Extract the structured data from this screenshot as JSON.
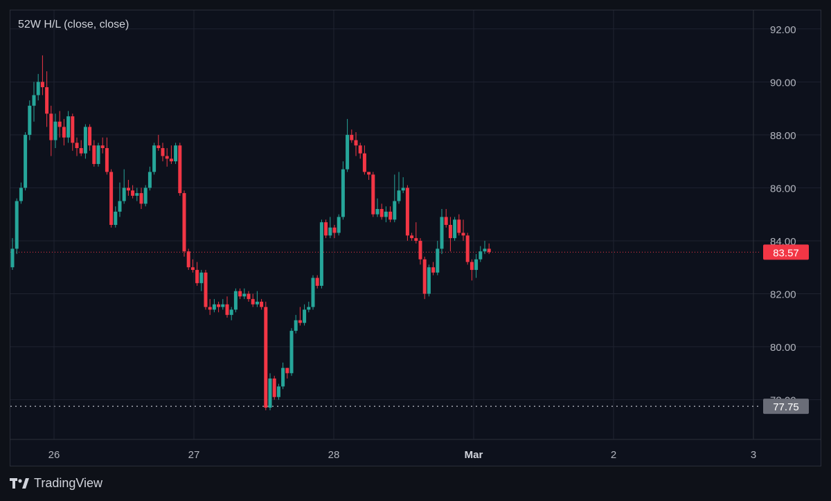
{
  "legend": {
    "label": "52W H/L (close, close)"
  },
  "brand": {
    "name": "TradingView",
    "icon": "tradingview-logo-icon"
  },
  "colors": {
    "up": "#26a69a",
    "down": "#f23645",
    "grid": "#1f2330",
    "text": "#b2b5be",
    "last_price_tag": "#f23645",
    "low_tag": "#6a6d78"
  },
  "chart_data": {
    "type": "candlestick",
    "x_ticks": [
      "26",
      "27",
      "28",
      "Mar",
      "2",
      "3"
    ],
    "y_ticks": [
      "92.00",
      "90.00",
      "88.00",
      "86.00",
      "84.00",
      "82.00",
      "80.00",
      "78.00"
    ],
    "ylim": [
      76.5,
      92.7
    ],
    "grid": true,
    "last_price": 83.57,
    "low_52w": 77.75,
    "candles": [
      [
        83.0,
        83.7,
        84.1,
        82.9
      ],
      [
        83.7,
        85.5,
        85.6,
        83.5
      ],
      [
        85.5,
        86.0,
        86.2,
        85.4
      ],
      [
        86.0,
        88.0,
        88.1,
        85.9
      ],
      [
        88.0,
        89.1,
        89.3,
        87.8
      ],
      [
        89.1,
        89.5,
        90.0,
        88.5
      ],
      [
        89.5,
        90.0,
        90.3,
        89.3
      ],
      [
        90.0,
        89.8,
        91.0,
        89.5
      ],
      [
        89.8,
        88.8,
        90.4,
        88.3
      ],
      [
        88.8,
        87.8,
        89.1,
        87.2
      ],
      [
        87.8,
        88.5,
        88.8,
        87.5
      ],
      [
        88.5,
        88.3,
        88.9,
        87.9
      ],
      [
        88.3,
        87.9,
        88.6,
        87.6
      ],
      [
        87.9,
        88.7,
        88.9,
        87.7
      ],
      [
        88.7,
        87.7,
        88.8,
        87.4
      ],
      [
        87.7,
        87.5,
        87.9,
        87.2
      ],
      [
        87.5,
        87.3,
        87.8,
        87.2
      ],
      [
        87.3,
        88.3,
        88.4,
        87.1
      ],
      [
        88.3,
        87.6,
        88.4,
        87.4
      ],
      [
        87.6,
        86.9,
        87.8,
        86.8
      ],
      [
        86.9,
        87.6,
        87.7,
        86.8
      ],
      [
        87.6,
        87.5,
        87.9,
        87.3
      ],
      [
        87.5,
        86.6,
        87.9,
        86.5
      ],
      [
        86.6,
        84.6,
        86.7,
        84.5
      ],
      [
        84.6,
        85.1,
        85.3,
        84.5
      ],
      [
        85.1,
        85.5,
        86.2,
        84.9
      ],
      [
        85.5,
        86.0,
        86.7,
        85.4
      ],
      [
        86.0,
        85.9,
        86.3,
        85.7
      ],
      [
        85.9,
        85.7,
        86.1,
        85.6
      ],
      [
        85.7,
        85.8,
        86.0,
        85.5
      ],
      [
        85.8,
        85.4,
        86.0,
        85.2
      ],
      [
        85.4,
        86.0,
        86.1,
        85.3
      ],
      [
        86.0,
        86.6,
        86.8,
        85.9
      ],
      [
        86.6,
        87.6,
        87.7,
        86.5
      ],
      [
        87.6,
        87.5,
        88.0,
        87.4
      ],
      [
        87.5,
        87.2,
        87.7,
        87.0
      ],
      [
        87.2,
        87.1,
        87.5,
        86.8
      ],
      [
        87.1,
        87.0,
        87.6,
        86.9
      ],
      [
        87.0,
        87.6,
        87.7,
        86.9
      ],
      [
        87.6,
        85.8,
        87.7,
        85.7
      ],
      [
        85.8,
        83.6,
        85.9,
        83.4
      ],
      [
        83.6,
        83.0,
        83.7,
        82.9
      ],
      [
        83.0,
        82.9,
        83.3,
        82.8
      ],
      [
        82.9,
        82.4,
        83.2,
        82.3
      ],
      [
        82.4,
        82.8,
        82.9,
        82.1
      ],
      [
        82.8,
        81.5,
        82.9,
        81.4
      ],
      [
        81.5,
        81.4,
        81.8,
        81.2
      ],
      [
        81.4,
        81.6,
        81.8,
        81.3
      ],
      [
        81.6,
        81.5,
        81.7,
        81.3
      ],
      [
        81.5,
        81.6,
        81.8,
        81.4
      ],
      [
        81.6,
        81.2,
        81.9,
        81.1
      ],
      [
        81.2,
        81.4,
        81.5,
        81.0
      ],
      [
        81.4,
        82.1,
        82.2,
        81.3
      ],
      [
        82.1,
        81.9,
        82.2,
        81.8
      ],
      [
        81.9,
        82.0,
        82.2,
        81.8
      ],
      [
        82.0,
        81.8,
        82.1,
        81.7
      ],
      [
        81.8,
        81.6,
        82.0,
        81.5
      ],
      [
        81.6,
        81.7,
        82.1,
        81.5
      ],
      [
        81.7,
        81.5,
        81.8,
        81.4
      ],
      [
        81.5,
        77.7,
        81.7,
        77.6
      ],
      [
        77.7,
        78.8,
        79.0,
        77.6
      ],
      [
        78.8,
        78.1,
        78.9,
        78.0
      ],
      [
        78.1,
        78.5,
        78.6,
        78.0
      ],
      [
        78.5,
        79.2,
        79.4,
        78.4
      ],
      [
        79.2,
        79.0,
        79.2,
        78.8
      ],
      [
        79.0,
        80.6,
        80.7,
        78.9
      ],
      [
        80.6,
        81.0,
        81.2,
        80.5
      ],
      [
        81.0,
        80.9,
        81.5,
        80.8
      ],
      [
        80.9,
        81.4,
        81.6,
        80.8
      ],
      [
        81.4,
        81.5,
        81.7,
        81.3
      ],
      [
        81.5,
        82.6,
        82.7,
        81.4
      ],
      [
        82.6,
        82.3,
        82.7,
        82.2
      ],
      [
        82.3,
        84.7,
        84.8,
        82.2
      ],
      [
        84.7,
        84.2,
        84.8,
        84.1
      ],
      [
        84.2,
        84.5,
        84.9,
        84.1
      ],
      [
        84.5,
        84.3,
        84.6,
        84.1
      ],
      [
        84.3,
        84.9,
        85.0,
        84.2
      ],
      [
        84.9,
        86.7,
        87.0,
        84.8
      ],
      [
        86.7,
        88.0,
        88.6,
        86.6
      ],
      [
        88.0,
        87.8,
        88.2,
        87.7
      ],
      [
        87.8,
        87.6,
        88.1,
        87.2
      ],
      [
        87.6,
        87.3,
        87.7,
        87.1
      ],
      [
        87.3,
        86.6,
        87.6,
        86.5
      ],
      [
        86.6,
        86.5,
        86.6,
        86.3
      ],
      [
        86.5,
        85.0,
        86.6,
        84.9
      ],
      [
        85.0,
        85.2,
        85.6,
        84.9
      ],
      [
        85.2,
        84.9,
        85.4,
        84.8
      ],
      [
        84.9,
        85.1,
        85.3,
        84.7
      ],
      [
        85.1,
        84.8,
        85.3,
        84.7
      ],
      [
        84.8,
        85.5,
        86.5,
        84.7
      ],
      [
        85.5,
        85.9,
        86.6,
        85.4
      ],
      [
        85.9,
        86.0,
        86.4,
        85.8
      ],
      [
        86.0,
        84.2,
        86.1,
        84.0
      ],
      [
        84.2,
        84.1,
        84.3,
        84.0
      ],
      [
        84.1,
        84.0,
        84.7,
        83.9
      ],
      [
        84.0,
        83.3,
        84.1,
        83.1
      ],
      [
        83.3,
        82.0,
        83.4,
        81.8
      ],
      [
        82.0,
        83.0,
        83.1,
        81.9
      ],
      [
        83.0,
        82.8,
        83.2,
        82.7
      ],
      [
        82.8,
        83.7,
        84.0,
        82.7
      ],
      [
        83.7,
        84.9,
        85.2,
        83.5
      ],
      [
        84.9,
        84.6,
        85.2,
        84.5
      ],
      [
        84.6,
        84.1,
        84.9,
        83.6
      ],
      [
        84.1,
        84.8,
        84.9,
        84.0
      ],
      [
        84.8,
        84.3,
        85.0,
        84.2
      ],
      [
        84.3,
        84.2,
        84.8,
        84.0
      ],
      [
        84.2,
        83.2,
        84.3,
        83.1
      ],
      [
        83.2,
        82.9,
        83.3,
        82.5
      ],
      [
        82.9,
        83.3,
        83.5,
        82.6
      ],
      [
        83.3,
        83.6,
        83.8,
        83.2
      ],
      [
        83.6,
        83.7,
        84.0,
        83.5
      ],
      [
        83.7,
        83.57,
        83.9,
        83.5
      ]
    ],
    "candle_fields": [
      "open",
      "close",
      "high",
      "low"
    ]
  }
}
